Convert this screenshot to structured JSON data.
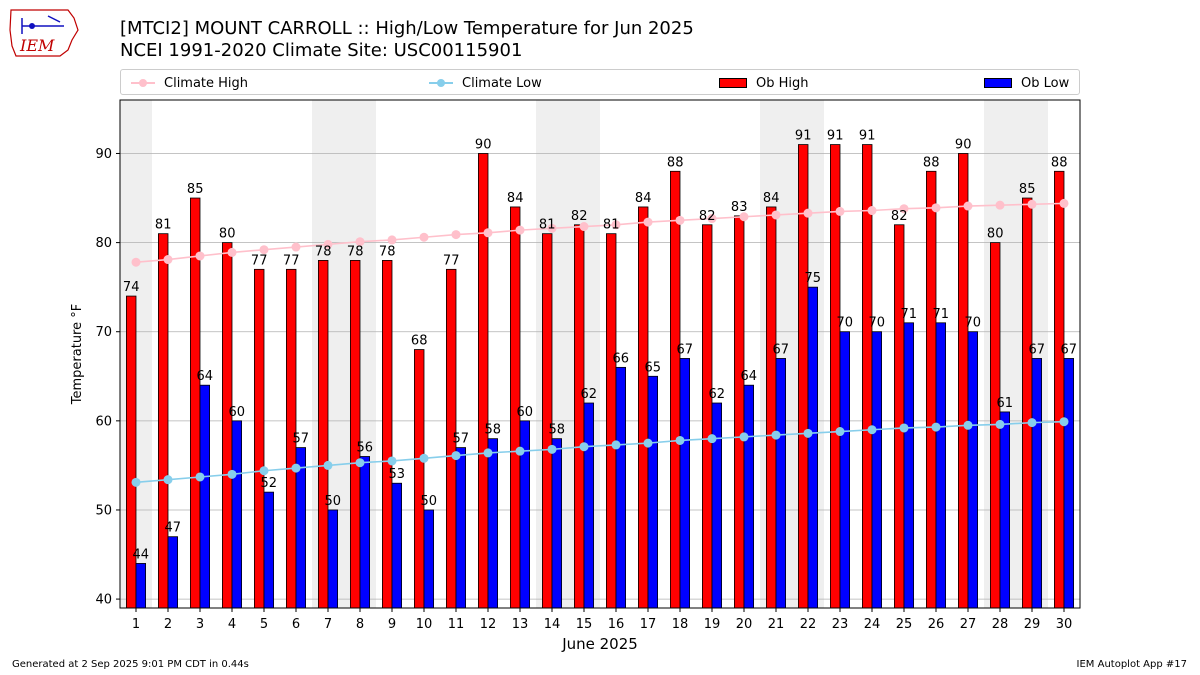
{
  "header": {
    "logo_text": "IEM",
    "title_line1": "[MTCI2] MOUNT CARROLL :: High/Low Temperature for Jun 2025",
    "title_line2": "NCEI 1991-2020 Climate Site: USC00115901"
  },
  "footer": {
    "generated": "Generated at 2 Sep 2025 9:01 PM CDT in 0.44s",
    "app": "IEM Autoplot App #17"
  },
  "colors": {
    "ob_high": "#ff0000",
    "ob_low": "#0000ff",
    "climate_high": "#ffc0cb",
    "climate_low": "#87ceeb",
    "weekend_shade": "#efefef",
    "grid": "#b0b0b0"
  },
  "chart_data": {
    "type": "bar",
    "xlabel": "June 2025",
    "ylabel": "Temperature °F",
    "ylim": [
      39,
      96
    ],
    "yticks": [
      40,
      50,
      60,
      70,
      80,
      90
    ],
    "grid": "horizontal",
    "legend_placement": "top",
    "categories": [
      "1",
      "2",
      "3",
      "4",
      "5",
      "6",
      "7",
      "8",
      "9",
      "10",
      "11",
      "12",
      "13",
      "14",
      "15",
      "16",
      "17",
      "18",
      "19",
      "20",
      "21",
      "22",
      "23",
      "24",
      "25",
      "26",
      "27",
      "28",
      "29",
      "30"
    ],
    "weekend_days": [
      1,
      7,
      8,
      14,
      15,
      21,
      22,
      28,
      29
    ],
    "series": [
      {
        "name": "Ob High",
        "kind": "bar",
        "values": [
          74,
          81,
          85,
          80,
          77,
          77,
          78,
          78,
          78,
          68,
          77,
          90,
          84,
          81,
          82,
          81,
          84,
          88,
          82,
          83,
          84,
          91,
          91,
          91,
          82,
          88,
          90,
          80,
          85,
          88
        ]
      },
      {
        "name": "Ob Low",
        "kind": "bar",
        "values": [
          44,
          47,
          64,
          60,
          52,
          57,
          50,
          56,
          53,
          50,
          57,
          58,
          60,
          58,
          62,
          66,
          65,
          67,
          62,
          64,
          67,
          75,
          70,
          70,
          71,
          71,
          70,
          61,
          67,
          67
        ]
      },
      {
        "name": "Climate High",
        "kind": "line",
        "values": [
          77.8,
          78.1,
          78.5,
          78.9,
          79.2,
          79.5,
          79.8,
          80.1,
          80.3,
          80.6,
          80.9,
          81.1,
          81.4,
          81.6,
          81.8,
          82.0,
          82.3,
          82.5,
          82.7,
          82.9,
          83.1,
          83.3,
          83.5,
          83.6,
          83.8,
          83.9,
          84.1,
          84.2,
          84.3,
          84.4
        ]
      },
      {
        "name": "Climate Low",
        "kind": "line",
        "values": [
          53.1,
          53.4,
          53.7,
          54.0,
          54.4,
          54.7,
          55.0,
          55.3,
          55.5,
          55.8,
          56.1,
          56.4,
          56.6,
          56.8,
          57.1,
          57.3,
          57.5,
          57.8,
          58.0,
          58.2,
          58.4,
          58.6,
          58.8,
          59.0,
          59.2,
          59.3,
          59.5,
          59.6,
          59.8,
          59.9
        ]
      }
    ]
  }
}
